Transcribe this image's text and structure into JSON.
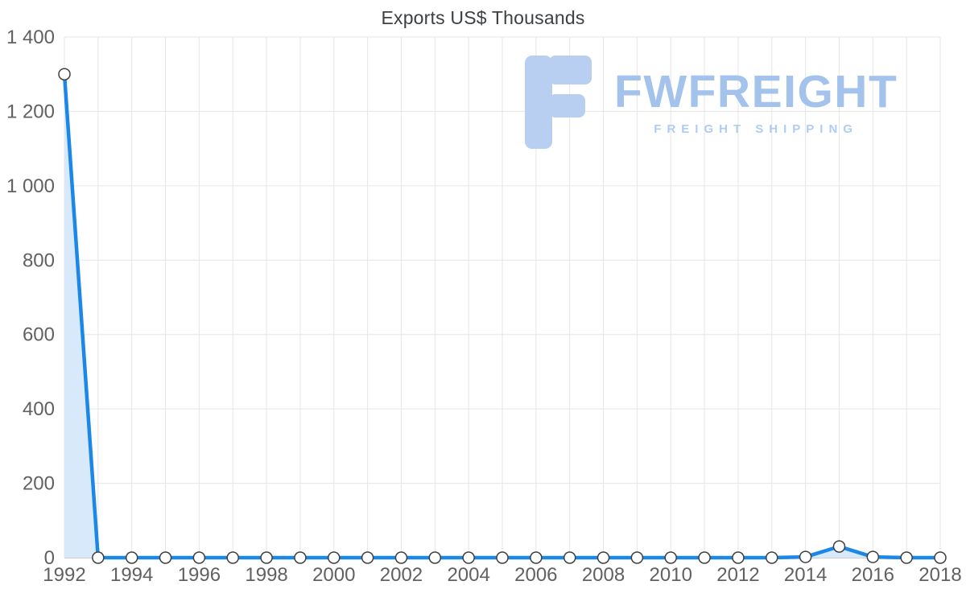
{
  "title": "Exports US$ Thousands",
  "watermark": {
    "brand": "FWFREIGHT",
    "tagline": "FREIGHT SHIPPING",
    "logo_color": "#b9cff2",
    "text_color": "#a3c2ec"
  },
  "chart_data": {
    "type": "area",
    "title": "Exports US$ Thousands",
    "xlabel": "",
    "ylabel": "",
    "x": [
      1992,
      1993,
      1994,
      1995,
      1996,
      1997,
      1998,
      1999,
      2000,
      2001,
      2002,
      2003,
      2004,
      2005,
      2006,
      2007,
      2008,
      2009,
      2010,
      2011,
      2012,
      2013,
      2014,
      2015,
      2016,
      2017,
      2018
    ],
    "values": [
      1300,
      0,
      0,
      0,
      0,
      0,
      0,
      0,
      0,
      0,
      0,
      0,
      0,
      0,
      0,
      0,
      0,
      0,
      0,
      0,
      0,
      0,
      2,
      30,
      2,
      0,
      0
    ],
    "xlim": [
      1992,
      2018
    ],
    "ylim": [
      0,
      1400
    ],
    "y_ticks": [
      0,
      200,
      400,
      600,
      800,
      1000,
      1200,
      1400
    ],
    "y_tick_labels": [
      "0",
      "200",
      "400",
      "600",
      "800",
      "1 000",
      "1 200",
      "1 400"
    ],
    "x_tick_labels": [
      "1992",
      "1994",
      "1996",
      "1998",
      "2000",
      "2002",
      "2004",
      "2006",
      "2008",
      "2010",
      "2012",
      "2014",
      "2016",
      "2018"
    ],
    "grid": true,
    "legend": "none",
    "marker": "white-circle",
    "line_color": "#1b87e6",
    "area_color": "#d7e9fb",
    "grid_color": "#e6e6e6",
    "axis_color": "#9e9e9e",
    "tick_color": "#616161",
    "marker_stroke": "#3f3f3f"
  }
}
